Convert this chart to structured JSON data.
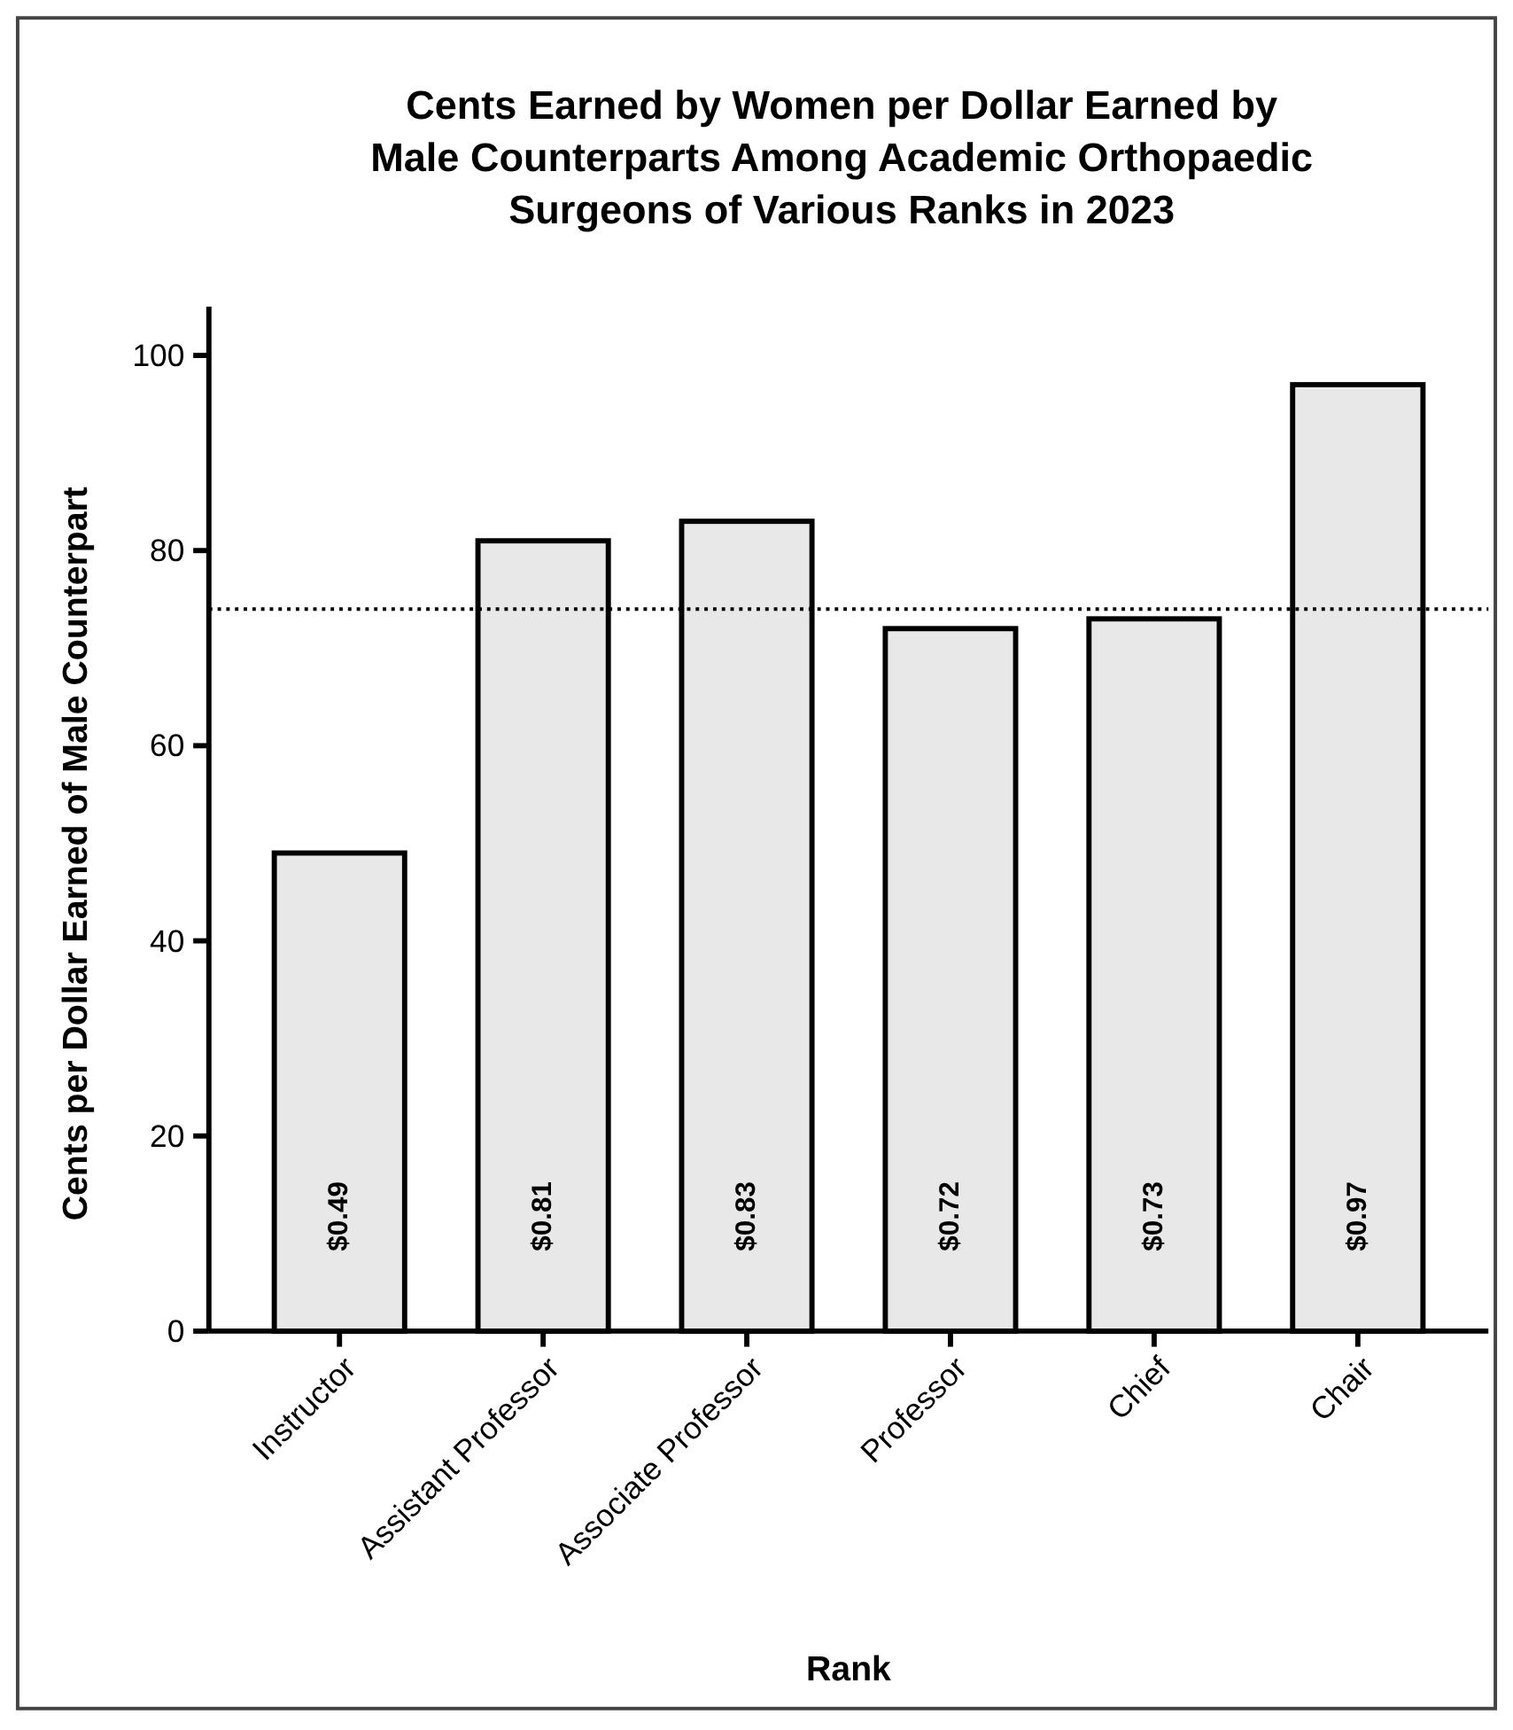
{
  "chart_data": {
    "type": "bar",
    "title": "Cents Earned by Women per Dollar Earned by Male Counterparts Among Academic Orthopaedic Surgeons of Various Ranks in 2023",
    "xlabel": "Rank",
    "ylabel": "Cents per Dollar Earned of Male Counterpart",
    "categories": [
      "Instructor",
      "Assistant Professor",
      "Associate Professor",
      "Professor",
      "Chief",
      "Chair"
    ],
    "values": [
      49,
      81,
      83,
      72,
      73,
      97
    ],
    "annotations": [
      "$0.49",
      "$0.81",
      "$0.83",
      "$0.72",
      "$0.73",
      "$0.97"
    ],
    "color": "#e8e8e8",
    "ylim": [
      0,
      105
    ],
    "yticks": [
      0,
      20,
      40,
      60,
      80,
      100
    ],
    "grid": false,
    "ref_lines": [
      {
        "axis": "y",
        "value": 74,
        "line_style": "dotted",
        "color": "#000000"
      }
    ]
  }
}
